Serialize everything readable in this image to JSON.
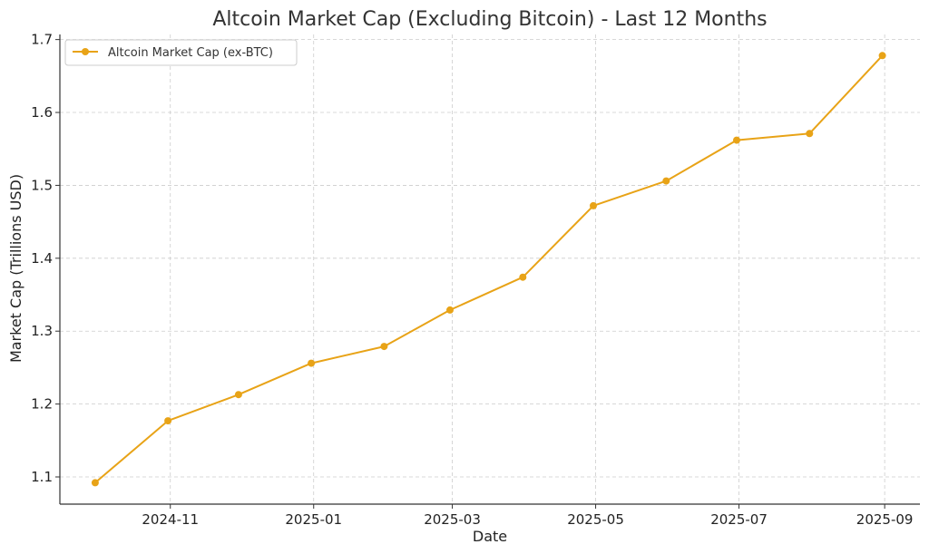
{
  "chart_data": {
    "type": "line",
    "title": "Altcoin Market Cap (Excluding Bitcoin) - Last 12 Months",
    "xlabel": "Date",
    "ylabel": "Market Cap (Trillions USD)",
    "x": [
      "2024-09-30",
      "2024-10-31",
      "2024-11-30",
      "2024-12-31",
      "2025-01-31",
      "2025-02-28",
      "2025-03-31",
      "2025-04-30",
      "2025-05-31",
      "2025-06-30",
      "2025-07-31",
      "2025-08-31"
    ],
    "series": [
      {
        "name": "Altcoin Market Cap (ex-BTC)",
        "color": "#E8A317",
        "values": [
          1.092,
          1.177,
          1.213,
          1.256,
          1.279,
          1.329,
          1.374,
          1.472,
          1.506,
          1.562,
          1.571,
          1.678
        ]
      }
    ],
    "xticks": [
      {
        "date": "2024-11-01",
        "label": "2024-11"
      },
      {
        "date": "2025-01-01",
        "label": "2025-01"
      },
      {
        "date": "2025-03-01",
        "label": "2025-03"
      },
      {
        "date": "2025-05-01",
        "label": "2025-05"
      },
      {
        "date": "2025-07-01",
        "label": "2025-07"
      },
      {
        "date": "2025-09-01",
        "label": "2025-09"
      }
    ],
    "yticks": [
      1.1,
      1.2,
      1.3,
      1.4,
      1.5,
      1.6,
      1.7
    ],
    "xlim": [
      "2024-09-15",
      "2025-09-16"
    ],
    "ylim": [
      1.0627,
      1.707
    ],
    "grid": true,
    "legend_position": "top-left"
  }
}
